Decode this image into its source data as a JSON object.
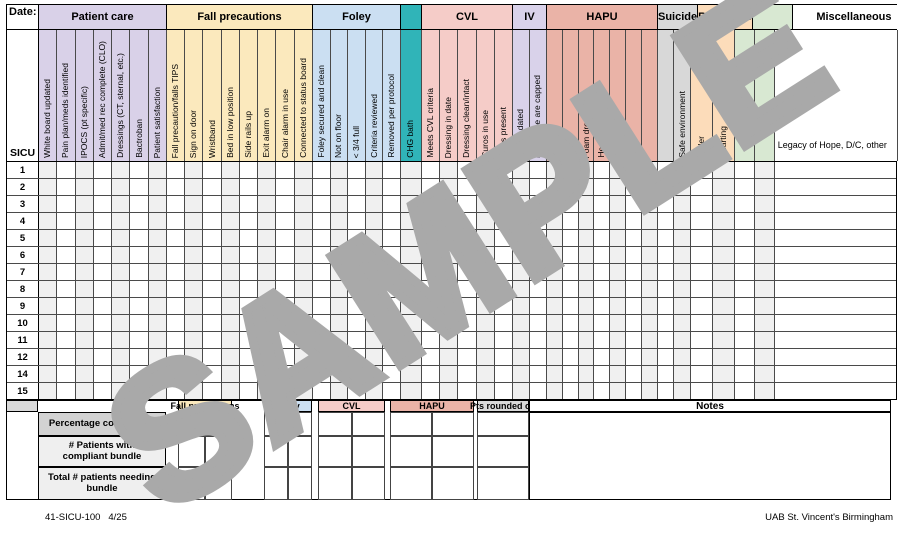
{
  "page": {
    "date_label": "Date:",
    "unit_label": "SICU"
  },
  "groups": [
    {
      "id": "patient_care",
      "label": "Patient care",
      "color": "#d9d1e8",
      "columns": [
        "White board updated",
        "Pain plan/meds identified",
        "IPOCS (pt specific)",
        "Admit/med rec complete (CLO)",
        "Dressings (CT, sternal, etc.)",
        "Bactroban",
        "Patient satisfaction"
      ]
    },
    {
      "id": "fall_precautions",
      "label": "Fall precautions",
      "color": "#fbe9bd",
      "columns": [
        "Fall precaution/falls TIPS",
        "Sign on door",
        "Wristband",
        "Bed in low position",
        "Side rails up",
        "Exit alarm on",
        "Chair alarm in use",
        "Connected to status board"
      ]
    },
    {
      "id": "foley",
      "label": "Foley",
      "color": "#cbdff2",
      "columns": [
        "Foley secured  and clean",
        "Not on floor",
        "< 3/4 full",
        "Criteria reviewed",
        "Removed per protocol"
      ]
    },
    {
      "id": "chg",
      "label": "",
      "color": "#30b4b8",
      "columns": [
        "CHG bath"
      ]
    },
    {
      "id": "cvl",
      "label": "CVL",
      "color": "#f5ccc8",
      "columns": [
        "Meets CVL criteria",
        "Dressing in date",
        "Dressing clean/intact",
        "Curos in use",
        "Caps present"
      ]
    },
    {
      "id": "iv",
      "label": "IV",
      "color": "#d9d2ea",
      "columns": [
        "Tubing dated",
        "Not in use are capped"
      ]
    },
    {
      "id": "hapu",
      "label": "HAPU",
      "color": "#eab3a7",
      "columns": [
        "",
        "",
        "Foam dressings",
        "Heels floated",
        "Linen layers",
        "",
        ""
      ]
    },
    {
      "id": "suicide",
      "label": "Suicide",
      "color": "#d8d8d8",
      "columns": [
        "",
        "Safe environment"
      ]
    },
    {
      "id": "restraints",
      "label": "Restraints",
      "color": "#fcdcba",
      "columns": [
        "Order",
        "Charting"
      ]
    },
    {
      "id": "green",
      "label": "",
      "color": "#d8e8d2",
      "columns": [
        "",
        ""
      ]
    },
    {
      "id": "misc",
      "label": "Miscellaneous",
      "color": "#ffffff",
      "columns": [],
      "note": "Legacy of Hope, D/C, other"
    }
  ],
  "rows": [
    "1",
    "2",
    "3",
    "4",
    "5",
    "6",
    "7",
    "8",
    "9",
    "10",
    "11",
    "12",
    "14",
    "15"
  ],
  "summary": {
    "bands": [
      "Fall precautions",
      "Foley",
      "CVL",
      "HAPU",
      "Pts rounded on"
    ],
    "notes_label": "Notes",
    "row_labels": [
      "Percentage compliance",
      "# Patients with compliant bundle",
      "Total # patients needing bundle"
    ]
  },
  "watermark": "SAMPLE",
  "footer": {
    "left": "41-SICU-100   4/25",
    "right": "UAB St. Vincent's Birmingham"
  }
}
